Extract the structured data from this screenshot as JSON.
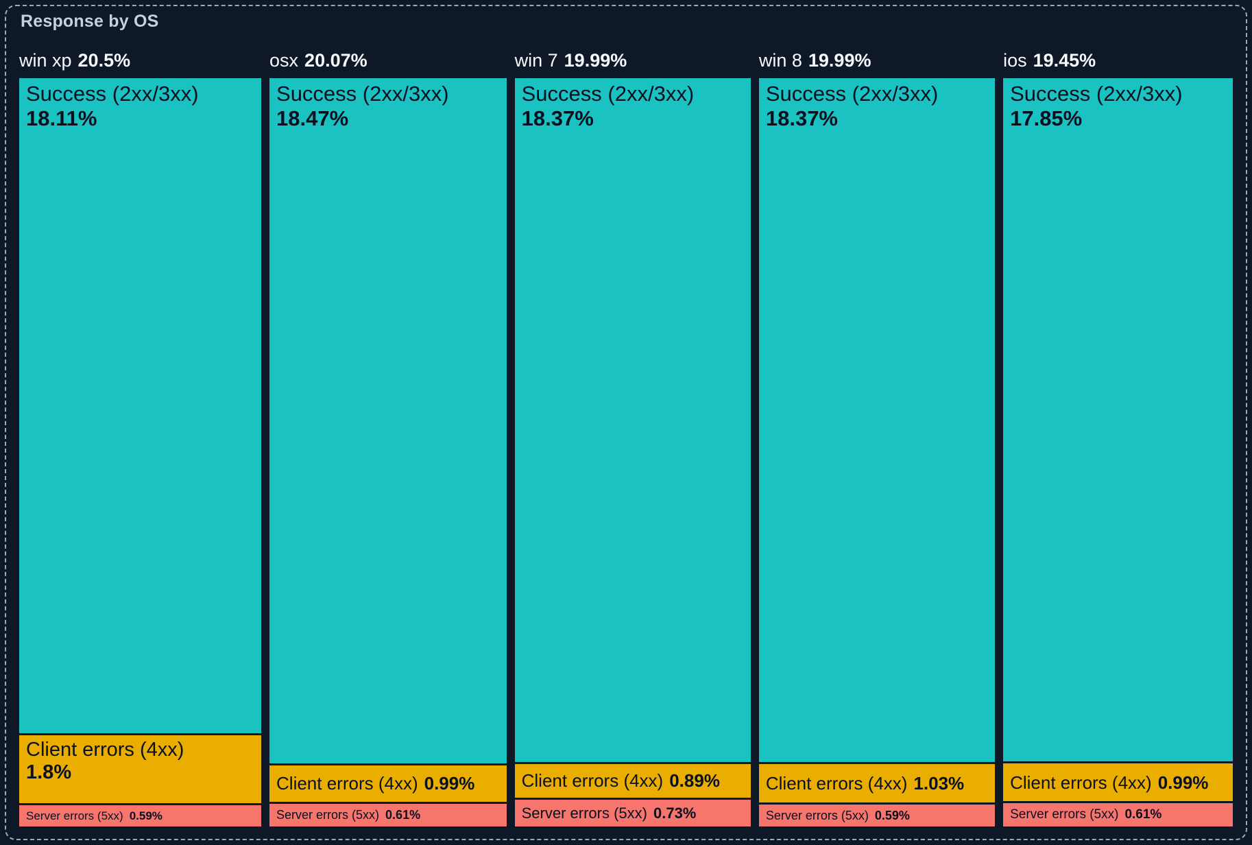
{
  "panel": {
    "title": "Response by OS"
  },
  "colors": {
    "background": "#0E1826",
    "border": "#97ABC4",
    "title_text": "#C6D0DE",
    "header_text": "#F7FAFD",
    "segment_text": "#0B1020",
    "success": "#1BC2C2",
    "client_errors": "#E9AE00",
    "server_errors": "#F6756C"
  },
  "chart_data": {
    "type": "treemap",
    "title": "Response by OS",
    "orientation": "columns-by-os, vertical segments by response class",
    "legend": [
      "Success (2xx/3xx)",
      "Client errors (4xx)",
      "Server errors (5xx)"
    ],
    "units": "percent of total responses",
    "columns": [
      {
        "os": "win xp",
        "total": "20.5%",
        "total_value": 20.5,
        "segments": [
          {
            "kind": "success",
            "label": "Success (2xx/3xx)",
            "pct": "18.11%",
            "value": 18.11
          },
          {
            "kind": "client_errors",
            "label": "Client errors (4xx)",
            "pct": "1.8%",
            "value": 1.8
          },
          {
            "kind": "server_errors",
            "label": "Server errors (5xx)",
            "pct": "0.59%",
            "value": 0.59
          }
        ]
      },
      {
        "os": "osx",
        "total": "20.07%",
        "total_value": 20.07,
        "segments": [
          {
            "kind": "success",
            "label": "Success (2xx/3xx)",
            "pct": "18.47%",
            "value": 18.47
          },
          {
            "kind": "client_errors",
            "label": "Client errors (4xx)",
            "pct": "0.99%",
            "value": 0.99
          },
          {
            "kind": "server_errors",
            "label": "Server errors (5xx)",
            "pct": "0.61%",
            "value": 0.61
          }
        ]
      },
      {
        "os": "win 7",
        "total": "19.99%",
        "total_value": 19.99,
        "segments": [
          {
            "kind": "success",
            "label": "Success (2xx/3xx)",
            "pct": "18.37%",
            "value": 18.37
          },
          {
            "kind": "client_errors",
            "label": "Client errors (4xx)",
            "pct": "0.89%",
            "value": 0.89
          },
          {
            "kind": "server_errors",
            "label": "Server errors (5xx)",
            "pct": "0.73%",
            "value": 0.73
          }
        ]
      },
      {
        "os": "win 8",
        "total": "19.99%",
        "total_value": 19.99,
        "segments": [
          {
            "kind": "success",
            "label": "Success (2xx/3xx)",
            "pct": "18.37%",
            "value": 18.37
          },
          {
            "kind": "client_errors",
            "label": "Client errors (4xx)",
            "pct": "1.03%",
            "value": 1.03
          },
          {
            "kind": "server_errors",
            "label": "Server errors (5xx)",
            "pct": "0.59%",
            "value": 0.59
          }
        ]
      },
      {
        "os": "ios",
        "total": "19.45%",
        "total_value": 19.45,
        "segments": [
          {
            "kind": "success",
            "label": "Success (2xx/3xx)",
            "pct": "17.85%",
            "value": 17.85
          },
          {
            "kind": "client_errors",
            "label": "Client errors (4xx)",
            "pct": "0.99%",
            "value": 0.99
          },
          {
            "kind": "server_errors",
            "label": "Server errors (5xx)",
            "pct": "0.61%",
            "value": 0.61
          }
        ]
      }
    ]
  }
}
